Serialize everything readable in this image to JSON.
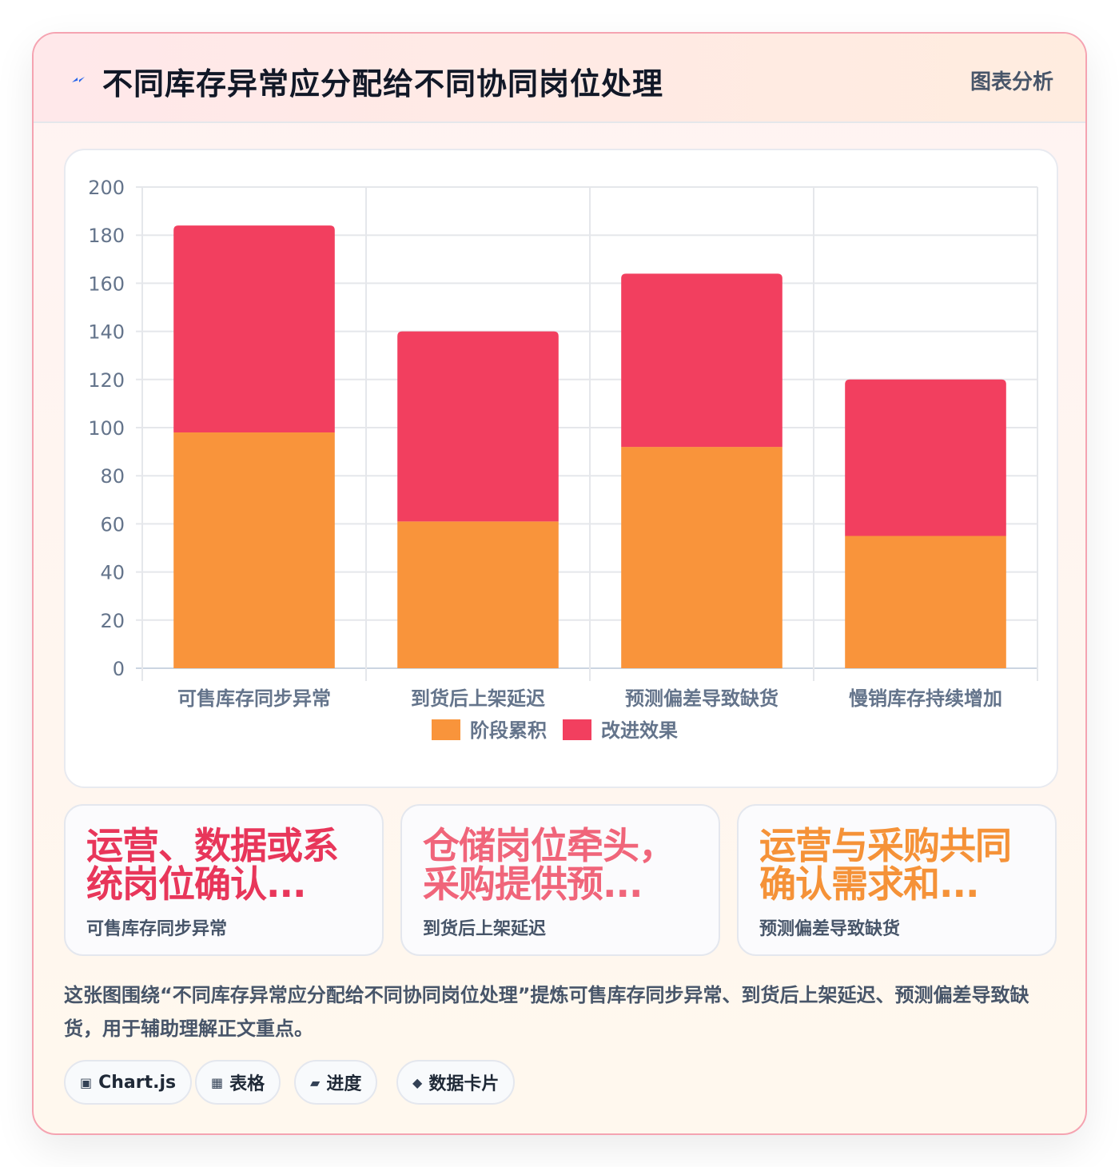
{
  "header": {
    "title": "不同库存异常应分配给不同协同岗位处理",
    "tag": "图表分析",
    "icon": "lightning-icon"
  },
  "chart_data": {
    "type": "bar",
    "stacked": true,
    "categories": [
      "可售库存同步异常",
      "到货后上架延迟",
      "预测偏差导致缺货",
      "慢销库存持续增加"
    ],
    "series": [
      {
        "name": "阶段累积",
        "color": "#f9943b",
        "values": [
          98,
          61,
          92,
          55
        ]
      },
      {
        "name": "改进效果",
        "color": "#f23f5f",
        "values": [
          86,
          79,
          72,
          65
        ]
      }
    ],
    "ylim": [
      0,
      200
    ],
    "yticks": [
      0,
      20,
      40,
      60,
      80,
      100,
      120,
      140,
      160,
      180,
      200
    ],
    "grid": true,
    "legend": "bottom"
  },
  "stat_cards": [
    {
      "value": "运营、数据或系统岗位确认...",
      "label": "可售库存同步异常",
      "color": "#e8365a"
    },
    {
      "value": "仓储岗位牵头，采购提供预...",
      "label": "到货后上架延迟",
      "color": "#f0657a"
    },
    {
      "value": "运营与采购共同确认需求和...",
      "label": "预测偏差导致缺货",
      "color": "#f59238"
    }
  ],
  "summary": "这张图围绕“不同库存异常应分配给不同协同岗位处理”提炼可售库存同步异常、到货后上架延迟、预测偏差导致缺货，用于辅助理解正文重点。",
  "chips": [
    {
      "icon": "▣",
      "label": "Chart.js"
    },
    {
      "icon": "▦",
      "label": "表格"
    },
    {
      "icon": "▰",
      "label": "进度"
    },
    {
      "icon": "◆",
      "label": "数据卡片"
    }
  ]
}
